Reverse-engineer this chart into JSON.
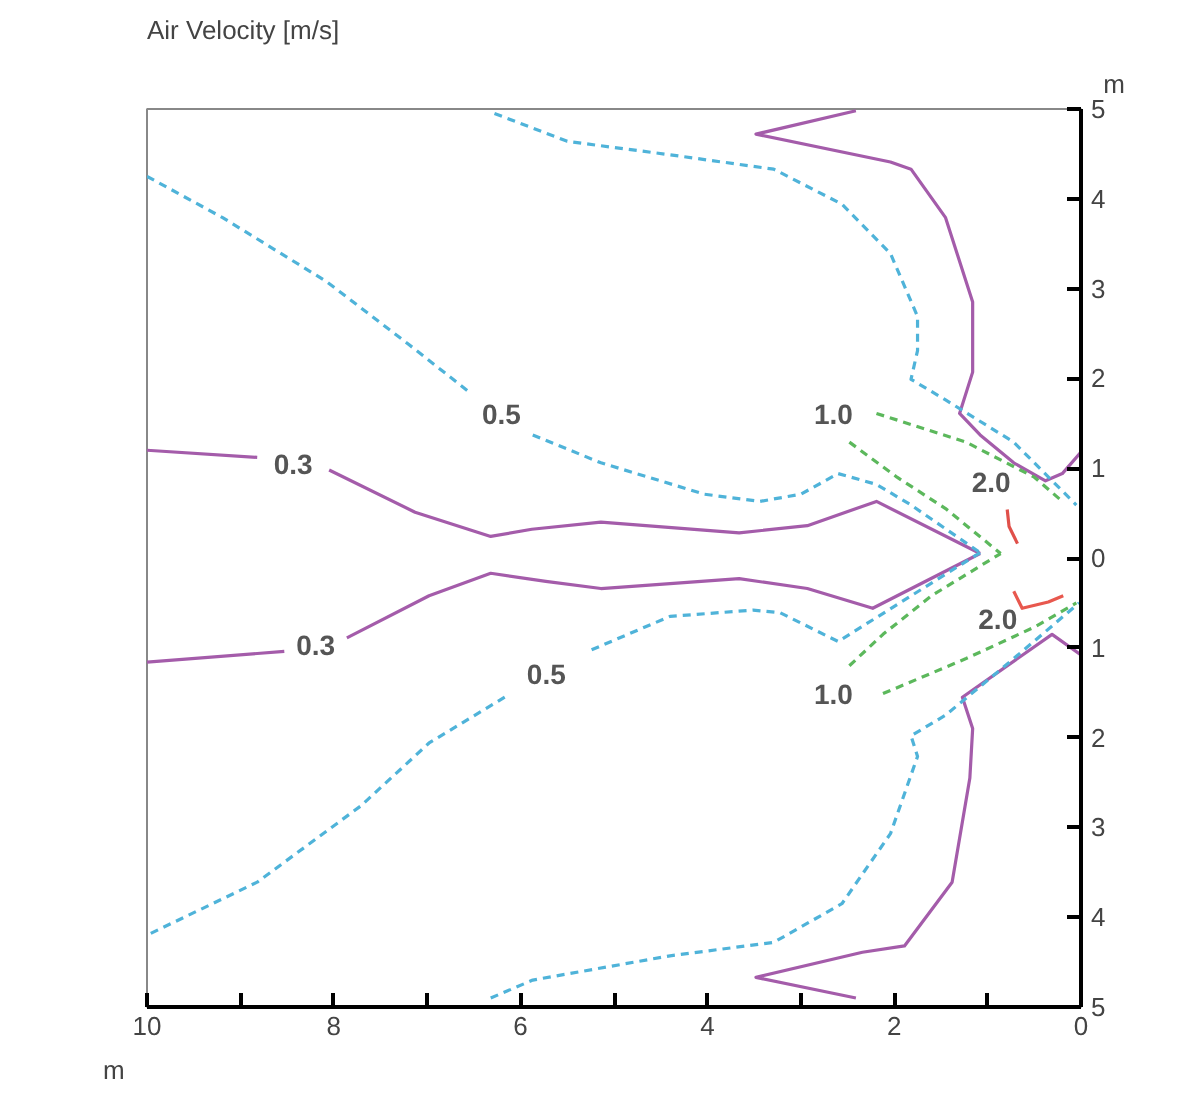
{
  "chart_data": {
    "type": "line",
    "title": "Air Velocity [m/s]",
    "xlabel": "m",
    "ylabel": "m",
    "xlim": [
      10,
      0
    ],
    "ylim": [
      -5,
      5
    ],
    "xticks": [
      10,
      {
        "value": 9,
        "label": null
      },
      8,
      {
        "value": 7,
        "label": null
      },
      6,
      {
        "value": 5,
        "label": null
      },
      4,
      {
        "value": 3,
        "label": null
      },
      2,
      {
        "value": 1,
        "label": null
      },
      0
    ],
    "yticks": [
      {
        "value": -5,
        "label": "5"
      },
      {
        "value": -4,
        "label": "4"
      },
      {
        "value": -3,
        "label": "3"
      },
      {
        "value": -2,
        "label": "2"
      },
      {
        "value": -1,
        "label": "1"
      },
      0,
      1,
      2,
      3,
      4,
      5
    ],
    "grid": false,
    "series": [
      {
        "name": "0.3",
        "color": "#a45caa",
        "line_style": "solid",
        "x": [
          10.0,
          8.82,
          null,
          8.05,
          7.13,
          6.32,
          5.88,
          5.14,
          3.66,
          2.93,
          2.19,
          1.08
        ],
        "values": [
          1.2,
          1.12,
          null,
          0.98,
          0.51,
          0.24,
          0.32,
          0.4,
          0.28,
          0.36,
          0.63,
          0.05
        ]
      },
      {
        "name": "0.3",
        "color": "#a45caa",
        "line_style": "solid",
        "x": [
          1.08,
          2.23,
          2.93,
          3.66,
          5.14,
          5.73,
          6.32,
          6.98,
          7.86,
          null,
          8.53,
          10.0
        ],
        "values": [
          0.05,
          -0.56,
          -0.34,
          -0.23,
          -0.34,
          -0.26,
          -0.17,
          -0.42,
          -0.89,
          null,
          -1.04,
          -1.16
        ]
      },
      {
        "color": "#a45caa",
        "line_style": "solid",
        "x": [
          2.41,
          3.48,
          2.04,
          1.82,
          1.45,
          1.16,
          1.16,
          1.3,
          1.08,
          0.72,
          0.38,
          0.2,
          0.0
        ],
        "values": [
          4.98,
          4.72,
          4.41,
          4.33,
          3.79,
          2.85,
          2.07,
          1.61,
          1.37,
          1.06,
          0.86,
          0.94,
          1.18
        ]
      },
      {
        "color": "#a45caa",
        "line_style": "solid",
        "x": [
          0.0,
          0.31,
          1.27,
          1.16,
          1.19,
          1.38,
          1.89,
          2.34,
          3.48,
          2.41
        ],
        "values": [
          -1.08,
          -0.85,
          -1.55,
          -1.9,
          -2.45,
          -3.61,
          -4.32,
          -4.39,
          -4.67,
          -4.9
        ]
      },
      {
        "name": "0.5",
        "color": "#4fb3d9",
        "line_style": "dashed",
        "x": [
          10.0,
          9.19,
          8.08,
          7.2,
          6.54,
          null,
          5.87,
          5.14,
          4.03,
          3.44,
          3.0,
          2.6,
          2.19,
          1.82,
          1.08
        ],
        "values": [
          4.25,
          3.79,
          3.08,
          2.38,
          1.84,
          null,
          1.37,
          1.06,
          0.71,
          0.63,
          0.71,
          0.94,
          0.82,
          0.59,
          0.06
        ]
      },
      {
        "name": "0.5",
        "color": "#4fb3d9",
        "line_style": "dashed",
        "x": [
          1.08,
          2.6,
          3.22,
          3.51,
          4.4,
          5.28,
          null,
          6.17,
          6.98,
          7.71,
          8.82,
          10.0
        ],
        "values": [
          0.06,
          -0.93,
          -0.61,
          -0.58,
          -0.65,
          -1.04,
          null,
          -1.55,
          -2.06,
          -2.76,
          -3.61,
          -4.2
        ]
      },
      {
        "color": "#4fb3d9",
        "line_style": "dashed",
        "x": [
          6.28,
          5.5,
          4.4,
          3.29,
          2.56,
          2.04,
          1.75,
          1.75,
          1.82,
          1.45,
          0.72,
          0.05
        ],
        "values": [
          4.95,
          4.64,
          4.49,
          4.33,
          3.94,
          3.39,
          2.69,
          2.31,
          1.99,
          1.76,
          1.29,
          0.59
        ]
      },
      {
        "color": "#4fb3d9",
        "line_style": "dashed",
        "x": [
          6.32,
          5.87,
          4.4,
          3.29,
          2.56,
          2.04,
          1.75,
          1.82,
          1.45,
          0.72,
          0.02
        ],
        "values": [
          -4.9,
          -4.7,
          -4.43,
          -4.28,
          -3.85,
          -3.07,
          -2.21,
          -1.98,
          -1.75,
          -1.12,
          -0.5
        ]
      },
      {
        "color": "#5cb85c",
        "line_style": "dashed",
        "x": [
          2.19,
          1.23,
          0.5,
          0.2
        ],
        "values": [
          1.61,
          1.29,
          0.9,
          0.63
        ]
      },
      {
        "name": "1.0",
        "color": "#5cb85c",
        "line_style": "dashed",
        "x": [
          2.48,
          1.97,
          1.45,
          0.86
        ],
        "values": [
          1.29,
          0.9,
          0.55,
          0.05
        ]
      },
      {
        "name": "1.0",
        "color": "#5cb85c",
        "line_style": "dashed",
        "x": [
          2.48,
          2.12,
          1.6,
          0.86
        ],
        "values": [
          -1.2,
          -0.85,
          -0.42,
          0.05
        ]
      },
      {
        "color": "#5cb85c",
        "line_style": "dashed",
        "x": [
          2.12,
          1.23,
          0.5,
          0.05
        ],
        "values": [
          -1.51,
          -1.12,
          -0.77,
          -0.5
        ]
      },
      {
        "name": "2.0",
        "color": "#e0504a",
        "line_style": "solid",
        "x": [
          0.79,
          0.77,
          0.68
        ],
        "values": [
          0.54,
          0.35,
          0.16
        ]
      },
      {
        "name": "2.0",
        "color": "#e8584e",
        "line_style": "solid",
        "x": [
          0.72,
          0.63,
          0.35,
          0.19
        ],
        "values": [
          -0.37,
          -0.56,
          -0.49,
          -0.42
        ]
      }
    ]
  }
}
